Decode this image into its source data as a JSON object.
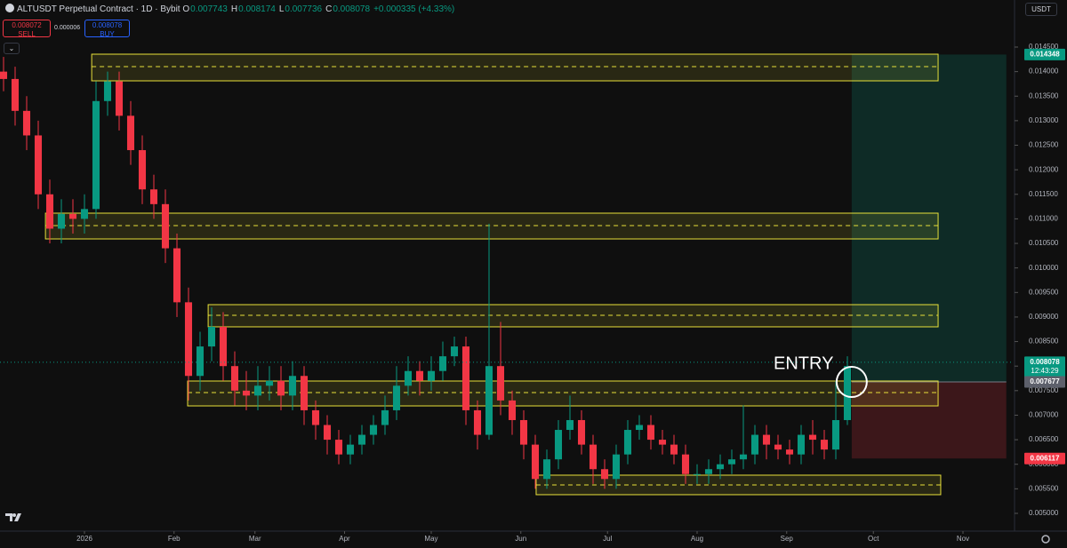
{
  "chart_data": {
    "type": "candlestick",
    "title": "ALTUSDT Perpetual Contract · 1D · Bybit",
    "ohlc_legend": [
      {
        "label": "O",
        "value": 0.007743
      },
      {
        "label": "H",
        "value": 0.008174
      },
      {
        "label": "L",
        "value": 0.007736
      },
      {
        "label": "C",
        "value": 0.008078
      }
    ],
    "change": "+0.000335 (+4.33%)",
    "sell": {
      "label": "SELL",
      "value": 0.008072
    },
    "buy": {
      "label": "BUY",
      "value": 0.008078
    },
    "spread": 6e-06,
    "currency": "USDT",
    "countdown": "12:43:29",
    "annotation": "ENTRY",
    "up_color": "#089981",
    "down_color": "#f23645",
    "x": [
      -28,
      -24,
      -20,
      -16,
      -12,
      -8,
      -4,
      0,
      4,
      8,
      12,
      16,
      20,
      24,
      28,
      32,
      36,
      40,
      44,
      48,
      52,
      56,
      60,
      64,
      68,
      72,
      76,
      80,
      84,
      88,
      92,
      96,
      100,
      104,
      108,
      112,
      116,
      120,
      124,
      128,
      132,
      136,
      140,
      144,
      148,
      152,
      156,
      160,
      164,
      168,
      172,
      176,
      180,
      184,
      188,
      192,
      196,
      200,
      204,
      208,
      212,
      216,
      220,
      224,
      228,
      232,
      236,
      240,
      244,
      248,
      252,
      256,
      260,
      264
    ],
    "open": [
      0.014,
      0.01385,
      0.0132,
      0.0127,
      0.0115,
      0.0108,
      0.0111,
      0.011,
      0.0112,
      0.0134,
      0.0138,
      0.0131,
      0.0124,
      0.0116,
      0.0113,
      0.0104,
      0.0093,
      0.0078,
      0.0084,
      0.0088,
      0.008,
      0.0075,
      0.0074,
      0.0076,
      0.0077,
      0.0074,
      0.0078,
      0.0071,
      0.0068,
      0.0065,
      0.0062,
      0.0064,
      0.0066,
      0.0068,
      0.0071,
      0.0076,
      0.0079,
      0.0077,
      0.0079,
      0.0082,
      0.0084,
      0.0071,
      0.0066,
      0.008,
      0.0073,
      0.0069,
      0.0064,
      0.0057,
      0.0061,
      0.0067,
      0.0069,
      0.0064,
      0.0059,
      0.0057,
      0.0062,
      0.0067,
      0.0068,
      0.0065,
      0.0064,
      0.0062,
      0.0058,
      0.0058,
      0.0059,
      0.006,
      0.0061,
      0.0062,
      0.0066,
      0.0064,
      0.0063,
      0.0062,
      0.0066,
      0.0065,
      0.0063,
      0.0069
    ],
    "high": [
      0.0143,
      0.0141,
      0.0135,
      0.013,
      0.0118,
      0.0114,
      0.0114,
      0.0115,
      0.0138,
      0.014,
      0.014,
      0.0134,
      0.0127,
      0.0119,
      0.0116,
      0.0107,
      0.0096,
      0.0087,
      0.0092,
      0.0091,
      0.0083,
      0.0079,
      0.008,
      0.008,
      0.008,
      0.0081,
      0.008,
      0.0073,
      0.007,
      0.0067,
      0.0066,
      0.0068,
      0.007,
      0.0074,
      0.008,
      0.0082,
      0.0081,
      0.0082,
      0.0085,
      0.0086,
      0.0086,
      0.0073,
      0.0109,
      0.0089,
      0.0075,
      0.0071,
      0.0066,
      0.0063,
      0.0069,
      0.0074,
      0.0071,
      0.0066,
      0.0061,
      0.0064,
      0.0069,
      0.007,
      0.007,
      0.0067,
      0.0066,
      0.0064,
      0.006,
      0.0061,
      0.0062,
      0.0063,
      0.0072,
      0.0068,
      0.0068,
      0.0066,
      0.0065,
      0.0068,
      0.0069,
      0.0067,
      0.0077,
      0.0082
    ],
    "low": [
      0.0136,
      0.0129,
      0.0124,
      0.0112,
      0.0105,
      0.0105,
      0.0107,
      0.0107,
      0.011,
      0.0131,
      0.0128,
      0.0121,
      0.0113,
      0.011,
      0.0101,
      0.009,
      0.0073,
      0.0075,
      0.0081,
      0.0077,
      0.0072,
      0.0071,
      0.0071,
      0.0073,
      0.0071,
      0.0071,
      0.0068,
      0.0065,
      0.0062,
      0.006,
      0.006,
      0.0062,
      0.0064,
      0.0066,
      0.0069,
      0.0074,
      0.0074,
      0.0075,
      0.0077,
      0.008,
      0.0068,
      0.0063,
      0.0065,
      0.007,
      0.0066,
      0.0061,
      0.0055,
      0.0055,
      0.0059,
      0.0065,
      0.0062,
      0.0056,
      0.0055,
      0.0055,
      0.006,
      0.0065,
      0.0063,
      0.0062,
      0.006,
      0.0056,
      0.0056,
      0.0056,
      0.0057,
      0.0058,
      0.0059,
      0.006,
      0.0061,
      0.0061,
      0.006,
      0.006,
      0.0062,
      0.0061,
      0.0061,
      0.0068
    ],
    "close": [
      0.01385,
      0.0132,
      0.0127,
      0.0115,
      0.0108,
      0.0111,
      0.011,
      0.0112,
      0.0134,
      0.0138,
      0.0131,
      0.0124,
      0.0116,
      0.0113,
      0.0104,
      0.0093,
      0.0078,
      0.0084,
      0.0088,
      0.008,
      0.0075,
      0.0074,
      0.0076,
      0.0077,
      0.0074,
      0.0078,
      0.0071,
      0.0068,
      0.0065,
      0.0062,
      0.0064,
      0.0066,
      0.0068,
      0.0071,
      0.0076,
      0.0079,
      0.0077,
      0.0079,
      0.0082,
      0.0084,
      0.0071,
      0.0066,
      0.008,
      0.0073,
      0.0069,
      0.0064,
      0.0057,
      0.0061,
      0.0067,
      0.0069,
      0.0064,
      0.0059,
      0.0057,
      0.0062,
      0.0067,
      0.0068,
      0.0065,
      0.0064,
      0.0062,
      0.0058,
      0.0058,
      0.0059,
      0.006,
      0.0061,
      0.0062,
      0.0066,
      0.0064,
      0.0063,
      0.0062,
      0.0066,
      0.0065,
      0.0063,
      0.0069,
      0.008
    ],
    "zones": [
      {
        "x0": 2.5,
        "x1": 295.4,
        "top": 0.014355,
        "bottom": 0.013812,
        "mid": 0.014102
      },
      {
        "x0": -13.5,
        "x1": 295.4,
        "top": 0.011116,
        "bottom": 0.010591,
        "mid": 0.010863
      },
      {
        "x0": 42.8,
        "x1": 295.4,
        "top": 0.009252,
        "bottom": 0.0088,
        "mid": 0.009035
      },
      {
        "x0": 35.7,
        "x1": 295.4,
        "top": 0.007696,
        "bottom": 0.007189,
        "mid": 0.007461
      },
      {
        "x0": 156.3,
        "x1": 296.3,
        "top": 0.005778,
        "bottom": 0.00538,
        "mid": 0.005579
      }
    ],
    "zone_color": "#e8e03a",
    "position": {
      "x0": 265.5,
      "x1": 319,
      "target": 0.014348,
      "entry": 0.007677,
      "stop": 0.006117
    },
    "xlim": [
      -29.23,
      321.54
    ],
    "ylim": [
      0.004692,
      0.015459
    ],
    "xticks": [
      {
        "value": 0,
        "label": "2026"
      },
      {
        "value": 31,
        "label": "Feb"
      },
      {
        "value": 59,
        "label": "Mar"
      },
      {
        "value": 90,
        "label": "Apr"
      },
      {
        "value": 120,
        "label": "May"
      },
      {
        "value": 151,
        "label": "Jun"
      },
      {
        "value": 181,
        "label": "Jul"
      },
      {
        "value": 212,
        "label": "Aug"
      },
      {
        "value": 243,
        "label": "Sep"
      },
      {
        "value": 273,
        "label": "Oct"
      },
      {
        "value": 304,
        "label": "Nov"
      }
    ],
    "yticks": [
      {
        "value": 0.0145,
        "label": "0.014500"
      },
      {
        "value": 0.014,
        "label": "0.014000"
      },
      {
        "value": 0.0135,
        "label": "0.013500"
      },
      {
        "value": 0.013,
        "label": "0.013000"
      },
      {
        "value": 0.0125,
        "label": "0.012500"
      },
      {
        "value": 0.012,
        "label": "0.012000"
      },
      {
        "value": 0.0115,
        "label": "0.011500"
      },
      {
        "value": 0.011,
        "label": "0.011000"
      },
      {
        "value": 0.0105,
        "label": "0.010500"
      },
      {
        "value": 0.01,
        "label": "0.010000"
      },
      {
        "value": 0.0095,
        "label": "0.009500"
      },
      {
        "value": 0.009,
        "label": "0.009000"
      },
      {
        "value": 0.0085,
        "label": "0.008500"
      },
      {
        "value": 0.008,
        "label": "0.008000"
      },
      {
        "value": 0.0075,
        "label": "0.007500"
      },
      {
        "value": 0.007,
        "label": "0.007000"
      },
      {
        "value": 0.0065,
        "label": "0.006500"
      },
      {
        "value": 0.006,
        "label": "0.006000"
      },
      {
        "value": 0.0055,
        "label": "0.005500"
      },
      {
        "value": 0.005,
        "label": "0.005000"
      }
    ],
    "grid": false
  }
}
